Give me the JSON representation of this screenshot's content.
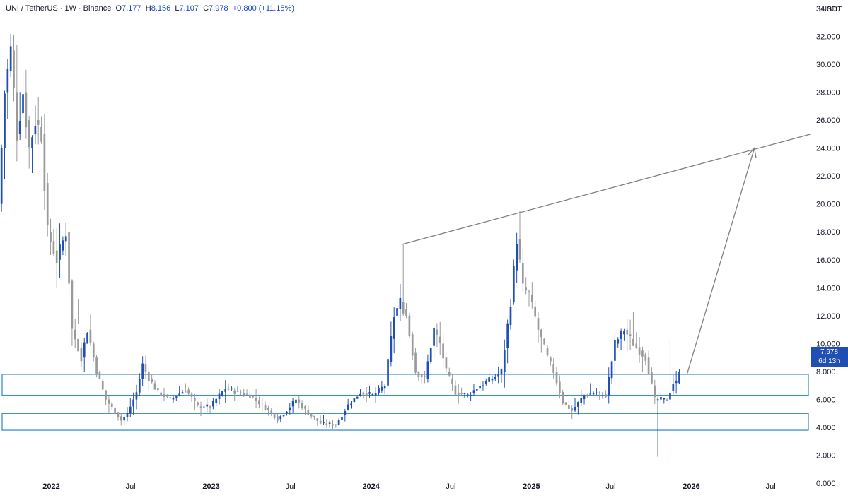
{
  "legend": {
    "symbol": "UNI / TetherUS",
    "interval": "1W",
    "exchange": "Binance",
    "open_label": "O",
    "open": "7.177",
    "high_label": "H",
    "high": "8.156",
    "low_label": "L",
    "low": "7.107",
    "close_label": "C",
    "close": "7.978",
    "change": "+0.800 (+11.15%)"
  },
  "price_scale": {
    "unit": "USDT"
  },
  "last_price": {
    "value": "7.978",
    "countdown": "6d 13h"
  },
  "colors": {
    "up": "#1f4fb3",
    "down": "#9a9a9a",
    "zone": "#3a8fd6",
    "trend": "#808080",
    "accent": "#1f4fb3"
  },
  "chart_data": {
    "type": "candlestick",
    "y_axis": {
      "min": -0.8,
      "max": 34.6,
      "ticks": [
        0,
        2,
        4,
        6,
        8,
        10,
        12,
        14,
        16,
        18,
        20,
        22,
        24,
        26,
        28,
        30,
        32,
        34
      ],
      "tick_labels": [
        "0.000",
        "2.000",
        "4.000",
        "6.000",
        "8.000",
        "10.000",
        "12.000",
        "14.000",
        "16.000",
        "18.000",
        "20.000",
        "22.000",
        "24.000",
        "26.000",
        "28.000",
        "30.000",
        "32.000",
        "34.000"
      ]
    },
    "x_axis": {
      "start": "2021-09-06",
      "end": "2026-09-30",
      "ticks": [
        {
          "date": "2022-01-01",
          "label": "2022",
          "bold": true
        },
        {
          "date": "2022-07-01",
          "label": "Jul",
          "bold": false
        },
        {
          "date": "2023-01-01",
          "label": "2023",
          "bold": true
        },
        {
          "date": "2023-07-01",
          "label": "Jul",
          "bold": false
        },
        {
          "date": "2024-01-01",
          "label": "2024",
          "bold": true
        },
        {
          "date": "2024-07-01",
          "label": "Jul",
          "bold": false
        },
        {
          "date": "2025-01-01",
          "label": "2025",
          "bold": true
        },
        {
          "date": "2025-07-01",
          "label": "Jul",
          "bold": false
        },
        {
          "date": "2026-01-01",
          "label": "2026",
          "bold": true
        },
        {
          "date": "2026-07-01",
          "label": "Jul",
          "bold": false
        }
      ]
    },
    "price_path": [
      [
        "2021-09-06",
        20
      ],
      [
        "2021-09-20",
        28
      ],
      [
        "2021-10-04",
        31
      ],
      [
        "2021-10-18",
        25
      ],
      [
        "2021-11-01",
        28
      ],
      [
        "2021-11-15",
        24
      ],
      [
        "2021-11-29",
        26
      ],
      [
        "2021-12-13",
        25
      ],
      [
        "2021-12-27",
        18
      ],
      [
        "2022-01-17",
        16
      ],
      [
        "2022-02-07",
        18
      ],
      [
        "2022-02-21",
        11
      ],
      [
        "2022-03-14",
        9
      ],
      [
        "2022-03-28",
        11
      ],
      [
        "2022-04-18",
        8
      ],
      [
        "2022-05-09",
        6
      ],
      [
        "2022-06-13",
        4.5
      ],
      [
        "2022-06-27",
        5
      ],
      [
        "2022-07-18",
        6.5
      ],
      [
        "2022-08-01",
        8.5
      ],
      [
        "2022-08-15",
        7.5
      ],
      [
        "2022-09-05",
        6.5
      ],
      [
        "2022-10-03",
        6
      ],
      [
        "2022-11-07",
        6.7
      ],
      [
        "2022-12-05",
        5.5
      ],
      [
        "2023-01-02",
        5.5
      ],
      [
        "2023-02-06",
        6.8
      ],
      [
        "2023-03-06",
        6.5
      ],
      [
        "2023-04-03",
        6.3
      ],
      [
        "2023-05-01",
        5.6
      ],
      [
        "2023-06-05",
        4.6
      ],
      [
        "2023-06-19",
        5
      ],
      [
        "2023-07-17",
        6
      ],
      [
        "2023-08-14",
        5
      ],
      [
        "2023-09-11",
        4.3
      ],
      [
        "2023-10-16",
        4.2
      ],
      [
        "2023-11-13",
        5.6
      ],
      [
        "2023-12-11",
        6.5
      ],
      [
        "2024-01-08",
        6.3
      ],
      [
        "2024-02-05",
        7
      ],
      [
        "2024-02-26",
        12
      ],
      [
        "2024-03-11",
        13
      ],
      [
        "2024-03-25",
        12
      ],
      [
        "2024-04-15",
        8
      ],
      [
        "2024-05-06",
        7.5
      ],
      [
        "2024-05-27",
        11
      ],
      [
        "2024-06-10",
        10
      ],
      [
        "2024-06-24",
        8
      ],
      [
        "2024-07-15",
        6.5
      ],
      [
        "2024-08-12",
        6.3
      ],
      [
        "2024-09-09",
        7
      ],
      [
        "2024-10-07",
        7.5
      ],
      [
        "2024-10-28",
        8
      ],
      [
        "2024-11-18",
        13
      ],
      [
        "2024-12-02",
        17.5
      ],
      [
        "2024-12-16",
        14
      ],
      [
        "2024-12-30",
        13.5
      ],
      [
        "2025-01-20",
        11
      ],
      [
        "2025-02-10",
        9
      ],
      [
        "2025-02-24",
        8
      ],
      [
        "2025-03-17",
        5.8
      ],
      [
        "2025-04-07",
        5.2
      ],
      [
        "2025-05-05",
        6.3
      ],
      [
        "2025-06-02",
        6.5
      ],
      [
        "2025-06-23",
        6.3
      ],
      [
        "2025-07-14",
        10
      ],
      [
        "2025-08-04",
        11
      ],
      [
        "2025-08-25",
        10
      ],
      [
        "2025-09-22",
        9
      ],
      [
        "2025-10-13",
        6
      ],
      [
        "2025-10-27",
        6
      ],
      [
        "2025-11-10",
        6
      ],
      [
        "2025-11-24",
        7.18
      ]
    ],
    "current_candle": {
      "date": "2025-12-01",
      "open": 7.177,
      "high": 8.156,
      "low": 7.107,
      "close": 7.978
    },
    "spikes": [
      {
        "date": "2021-10-11",
        "high": 31.4
      },
      {
        "date": "2022-02-28",
        "low": 13.2
      },
      {
        "date": "2024-03-11",
        "high": 17.1
      },
      {
        "date": "2024-12-02",
        "high": 19.5
      },
      {
        "date": "2025-08-18",
        "high": 12.3
      },
      {
        "date": "2025-10-13",
        "low": 1.9
      },
      {
        "date": "2025-11-10",
        "high": 10.3
      }
    ],
    "support_zones": [
      {
        "low": 6.3,
        "high": 7.8
      },
      {
        "low": 3.8,
        "high": 5.0
      }
    ],
    "trend_line": {
      "from": {
        "date": "2024-03-11",
        "price": 17.1
      },
      "to": {
        "date": "2026-10-12",
        "price": 25.1
      }
    },
    "projection_arrow": {
      "from": {
        "date": "2025-12-22",
        "price": 7.8
      },
      "to": {
        "date": "2026-05-25",
        "price": 24.0
      }
    }
  }
}
